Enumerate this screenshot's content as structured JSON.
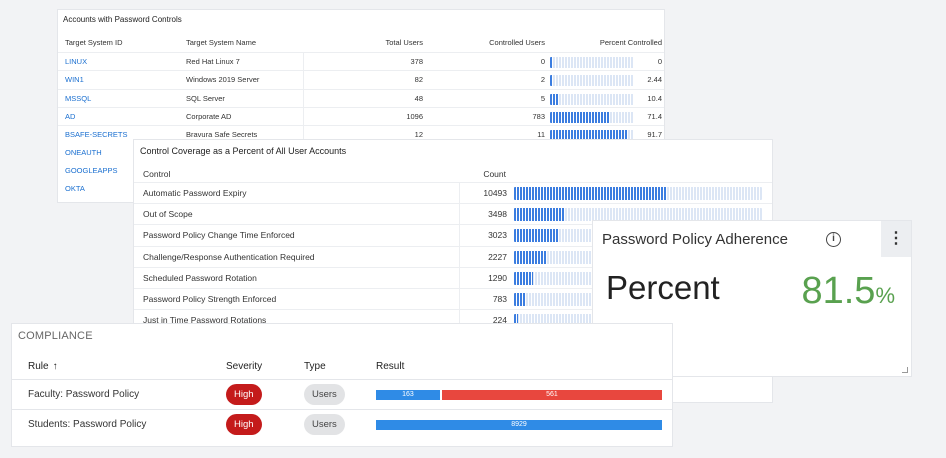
{
  "accounts_panel": {
    "title": "Accounts with Password Controls",
    "columns": [
      "Target System ID",
      "Target System Name",
      "Total Users",
      "Controlled Users",
      "Percent Controlled"
    ],
    "rows": [
      {
        "id": "LINUX",
        "name": "Red Hat Linux 7",
        "total": "378",
        "controlled": "0",
        "percent": "0",
        "pct_value": 0
      },
      {
        "id": "WIN1",
        "name": "Windows 2019 Server",
        "total": "82",
        "controlled": "2",
        "percent": "2.44",
        "pct_value": 2.44
      },
      {
        "id": "MSSQL",
        "name": "SQL Server",
        "total": "48",
        "controlled": "5",
        "percent": "10.4",
        "pct_value": 10.4
      },
      {
        "id": "AD",
        "name": "Corporate AD",
        "total": "1096",
        "controlled": "783",
        "percent": "71.4",
        "pct_value": 71.4
      },
      {
        "id": "BSAFE-SECRETS",
        "name": "Bravura Safe Secrets",
        "total": "12",
        "controlled": "11",
        "percent": "91.7",
        "pct_value": 91.7
      },
      {
        "id": "ONEAUTH"
      },
      {
        "id": "GOOGLEAPPS"
      },
      {
        "id": "OKTA"
      }
    ]
  },
  "coverage_panel": {
    "title": "Control Coverage as a Percent of All User Accounts",
    "columns": [
      "Control",
      "Count"
    ],
    "max_count": 17000,
    "rows": [
      {
        "control": "Automatic Password Expiry",
        "count": "10493",
        "value": 10493
      },
      {
        "control": "Out of Scope",
        "count": "3498",
        "value": 3498
      },
      {
        "control": "Password Policy Change Time Enforced",
        "count": "3023",
        "value": 3023
      },
      {
        "control": "Challenge/Response Authentication Required",
        "count": "2227",
        "value": 2227
      },
      {
        "control": "Scheduled Password Rotation",
        "count": "1290",
        "value": 1290
      },
      {
        "control": "Password Policy Strength Enforced",
        "count": "783",
        "value": 783
      },
      {
        "control": "Just in Time Password Rotations",
        "count": "224",
        "value": 224
      }
    ]
  },
  "adherence_panel": {
    "title": "Password Policy Adherence",
    "label": "Percent",
    "value": "81.5",
    "unit": "%",
    "info_icon": "info-icon",
    "menu_icon": "kebab-menu-icon",
    "value_color": "#59a14f"
  },
  "compliance_panel": {
    "title": "COMPLIANCE",
    "columns": {
      "rule": "Rule",
      "rule_sort": "↑",
      "severity": "Severity",
      "type": "Type",
      "result": "Result"
    },
    "rows": [
      {
        "rule": "Faculty: Password Policy",
        "severity": "High",
        "type": "Users",
        "segments": [
          {
            "label": "163",
            "value": 163,
            "color": "#2f8be6"
          },
          {
            "label": "561",
            "value": 561,
            "color": "#e8473e"
          }
        ]
      },
      {
        "rule": "Students: Password Policy",
        "severity": "High",
        "type": "Users",
        "segments": [
          {
            "label": "8929",
            "value": 8929,
            "color": "#2f8be6"
          }
        ]
      }
    ],
    "severity_color": "#c41b1b"
  }
}
